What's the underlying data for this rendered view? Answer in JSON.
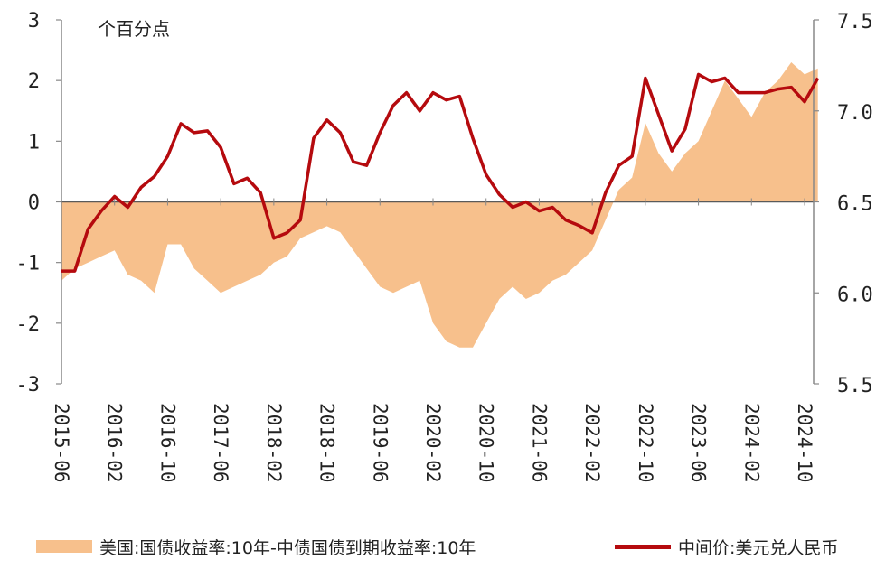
{
  "chart_data": {
    "type": "area+line",
    "unit_label": "个百分点",
    "y_left": {
      "ticks": [
        "3",
        "2",
        "1",
        "0",
        "-1",
        "-2",
        "-3"
      ],
      "range": [
        -3,
        3
      ]
    },
    "y_right": {
      "ticks": [
        "7.5",
        "7.0",
        "6.5",
        "6.0",
        "5.5"
      ],
      "range": [
        5.5,
        7.5
      ]
    },
    "x_ticks": [
      "2015-06",
      "2016-02",
      "2016-10",
      "2017-06",
      "2018-02",
      "2018-10",
      "2019-06",
      "2020-02",
      "2020-10",
      "2021-06",
      "2022-02",
      "2022-10",
      "2023-06",
      "2024-02",
      "2024-10"
    ],
    "series": [
      {
        "name": "美国:国债收益率:10年-中债国债到期收益率:10年",
        "axis": "left",
        "style": "area",
        "color": "#F7C08C",
        "x": [
          "2015-06",
          "2015-08",
          "2015-10",
          "2015-12",
          "2016-02",
          "2016-04",
          "2016-06",
          "2016-08",
          "2016-10",
          "2016-12",
          "2017-02",
          "2017-04",
          "2017-06",
          "2017-08",
          "2017-10",
          "2017-12",
          "2018-02",
          "2018-04",
          "2018-06",
          "2018-08",
          "2018-10",
          "2018-12",
          "2019-02",
          "2019-04",
          "2019-06",
          "2019-08",
          "2019-10",
          "2019-12",
          "2020-02",
          "2020-04",
          "2020-06",
          "2020-08",
          "2020-10",
          "2020-12",
          "2021-02",
          "2021-04",
          "2021-06",
          "2021-08",
          "2021-10",
          "2021-12",
          "2022-02",
          "2022-04",
          "2022-06",
          "2022-08",
          "2022-10",
          "2022-12",
          "2023-02",
          "2023-04",
          "2023-06",
          "2023-08",
          "2023-10",
          "2023-12",
          "2024-02",
          "2024-04",
          "2024-06",
          "2024-08",
          "2024-10",
          "2024-12"
        ],
        "values": [
          -1.3,
          -1.1,
          -1.0,
          -0.9,
          -0.8,
          -1.2,
          -1.3,
          -1.5,
          -0.7,
          -0.7,
          -1.1,
          -1.3,
          -1.5,
          -1.4,
          -1.3,
          -1.2,
          -1.0,
          -0.9,
          -0.6,
          -0.5,
          -0.4,
          -0.5,
          -0.8,
          -1.1,
          -1.4,
          -1.5,
          -1.4,
          -1.3,
          -2.0,
          -2.3,
          -2.4,
          -2.4,
          -2.0,
          -1.6,
          -1.4,
          -1.6,
          -1.5,
          -1.3,
          -1.2,
          -1.0,
          -0.8,
          -0.3,
          0.2,
          0.4,
          1.3,
          0.8,
          0.5,
          0.8,
          1.0,
          1.5,
          2.0,
          1.7,
          1.4,
          1.8,
          2.0,
          2.3,
          2.1,
          2.2
        ]
      },
      {
        "name": "中间价:美元兑人民币",
        "axis": "right",
        "style": "line",
        "color": "#B50A0E",
        "x": [
          "2015-06",
          "2015-08",
          "2015-10",
          "2015-12",
          "2016-02",
          "2016-04",
          "2016-06",
          "2016-08",
          "2016-10",
          "2016-12",
          "2017-02",
          "2017-04",
          "2017-06",
          "2017-08",
          "2017-10",
          "2017-12",
          "2018-02",
          "2018-04",
          "2018-06",
          "2018-08",
          "2018-10",
          "2018-12",
          "2019-02",
          "2019-04",
          "2019-06",
          "2019-08",
          "2019-10",
          "2019-12",
          "2020-02",
          "2020-04",
          "2020-06",
          "2020-08",
          "2020-10",
          "2020-12",
          "2021-02",
          "2021-04",
          "2021-06",
          "2021-08",
          "2021-10",
          "2021-12",
          "2022-02",
          "2022-04",
          "2022-06",
          "2022-08",
          "2022-10",
          "2022-12",
          "2023-02",
          "2023-04",
          "2023-06",
          "2023-08",
          "2023-10",
          "2023-12",
          "2024-02",
          "2024-04",
          "2024-06",
          "2024-08",
          "2024-10",
          "2024-12"
        ],
        "values": [
          6.12,
          6.12,
          6.35,
          6.45,
          6.53,
          6.47,
          6.58,
          6.64,
          6.75,
          6.93,
          6.88,
          6.89,
          6.8,
          6.6,
          6.63,
          6.55,
          6.3,
          6.33,
          6.4,
          6.85,
          6.95,
          6.88,
          6.72,
          6.7,
          6.88,
          7.03,
          7.1,
          7.0,
          7.1,
          7.06,
          7.08,
          6.85,
          6.65,
          6.54,
          6.47,
          6.5,
          6.45,
          6.47,
          6.4,
          6.37,
          6.33,
          6.55,
          6.7,
          6.75,
          7.18,
          6.98,
          6.78,
          6.9,
          7.2,
          7.16,
          7.18,
          7.1,
          7.1,
          7.1,
          7.12,
          7.13,
          7.05,
          7.18
        ]
      }
    ],
    "legend_position": "bottom",
    "grid": false
  }
}
